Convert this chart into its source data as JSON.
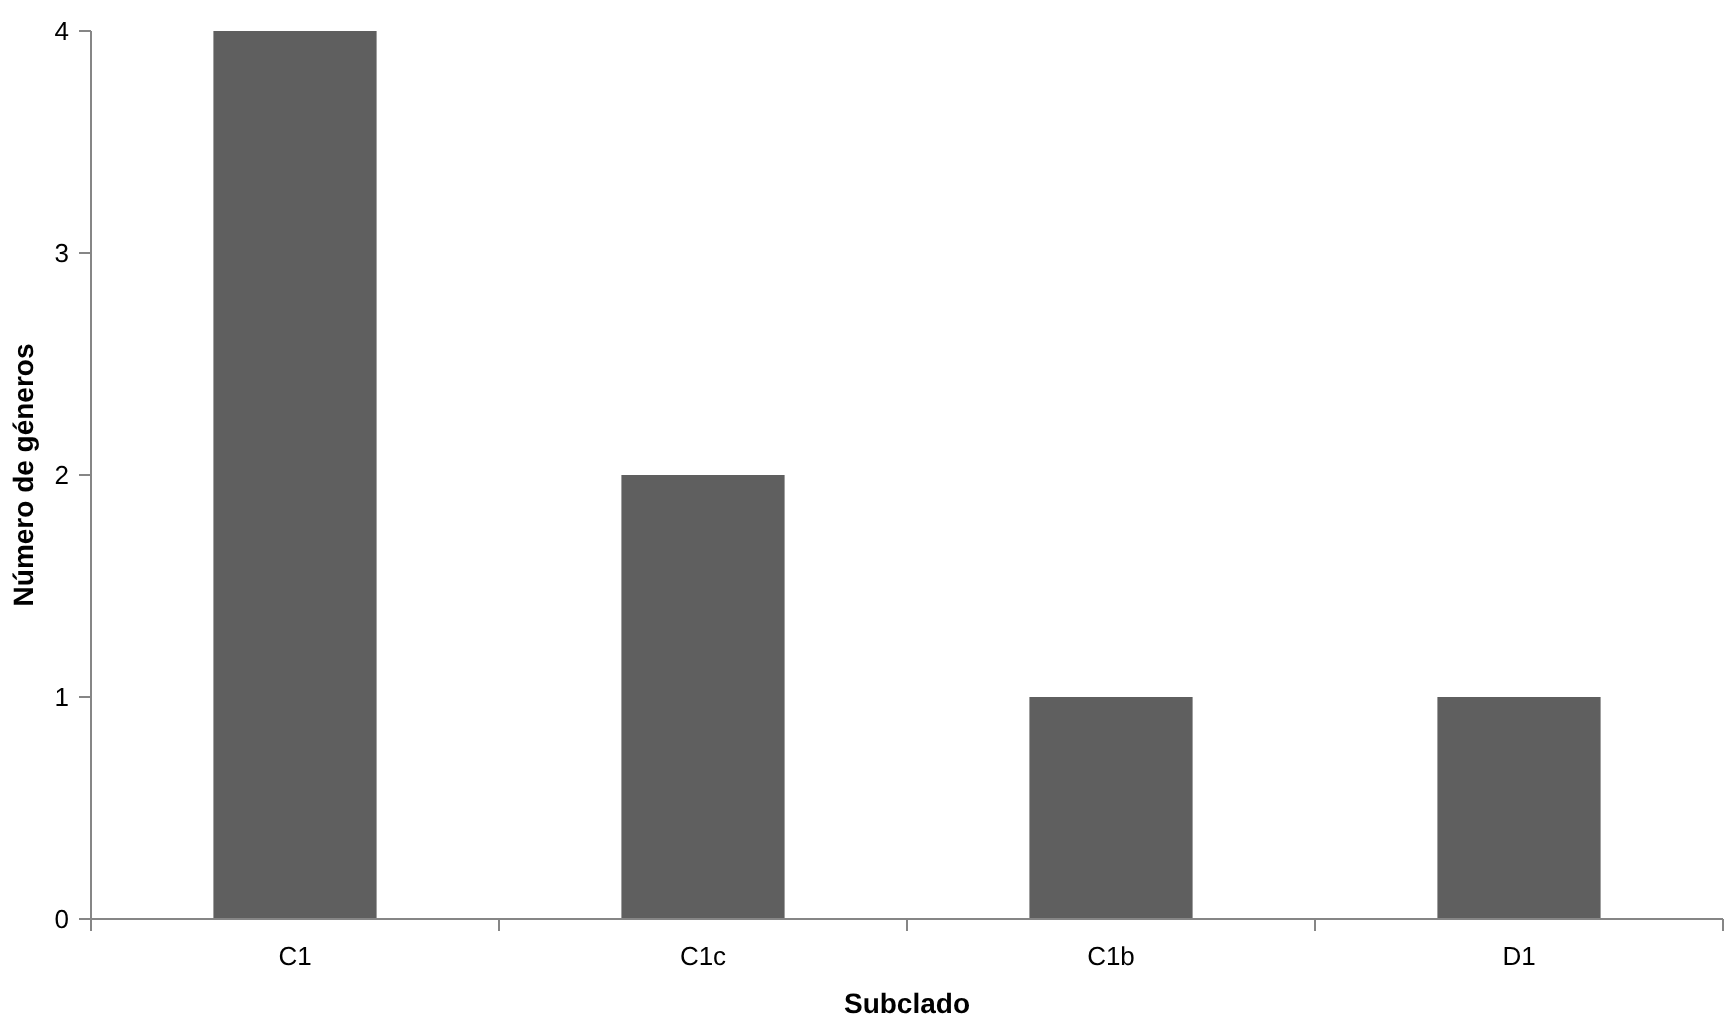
{
  "chart_data": {
    "type": "bar",
    "xlabel": "Subclado",
    "ylabel": "Número de géneros",
    "categories": [
      "C1",
      "C1c",
      "C1b",
      "D1"
    ],
    "values": [
      4,
      2,
      1,
      1
    ],
    "color": "#5f5f5f",
    "ylim": [
      0,
      4
    ],
    "yticks": [
      0,
      1,
      2,
      3,
      4
    ],
    "grid": false
  }
}
